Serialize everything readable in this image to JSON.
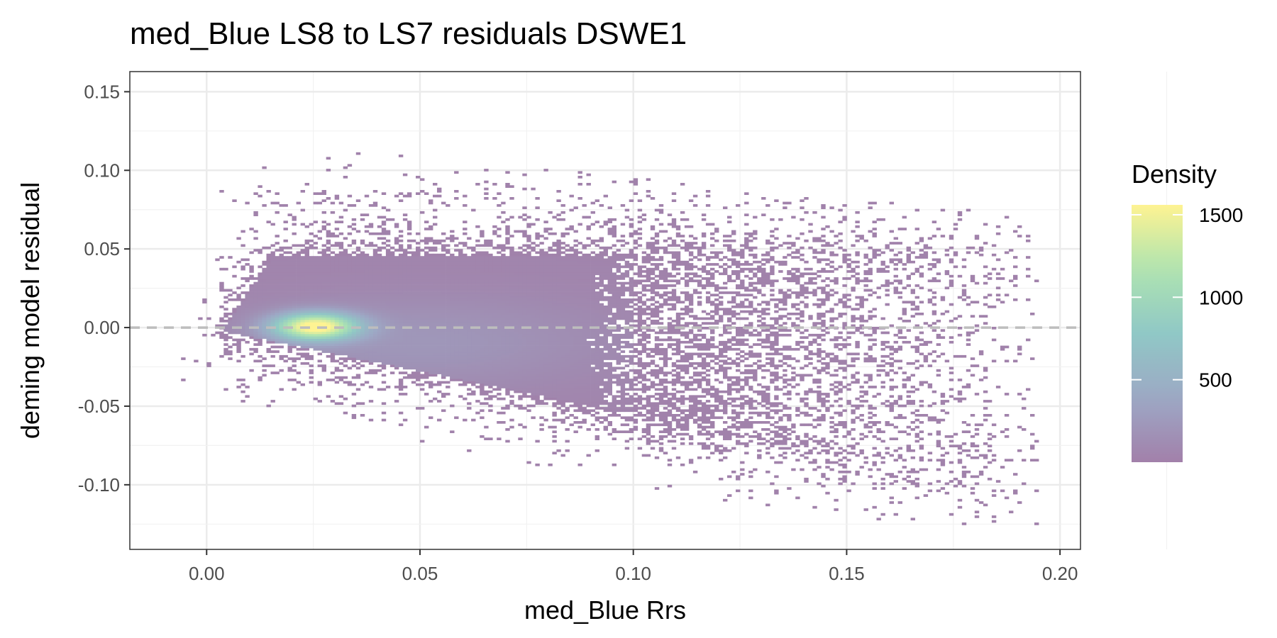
{
  "chart_data": {
    "type": "heatmap",
    "title": "med_Blue LS8 to LS7 residuals DSWE1",
    "xlabel": "med_Blue Rrs",
    "ylabel": "deming model residual",
    "xlim": [
      -0.018,
      0.2048
    ],
    "ylim": [
      -0.1411,
      0.1628
    ],
    "x_ticks": [
      0.0,
      0.05,
      0.1,
      0.15,
      0.2
    ],
    "x_tick_labels": [
      "0.00",
      "0.05",
      "0.10",
      "0.15",
      "0.20"
    ],
    "y_ticks": [
      0.15,
      0.1,
      0.05,
      0.0,
      -0.05,
      -0.1
    ],
    "y_tick_labels": [
      "0.15",
      "0.10",
      "0.05",
      "0.00",
      "-0.05",
      "-0.10"
    ],
    "grid": true,
    "reference_line": {
      "y": 0,
      "style": "dashed",
      "color": "#bdbdbd"
    },
    "legend": {
      "title": "Density",
      "placement": "right",
      "range": [
        0,
        1560
      ],
      "ticks": [
        500,
        1000,
        1500
      ],
      "tick_labels": [
        "500",
        "1000",
        "1500"
      ],
      "colormap": "viridis",
      "alpha": 0.5
    },
    "density_model": {
      "peak": {
        "x": 0.025,
        "y": 0.0,
        "density": 1560
      },
      "core_x_range": [
        0.005,
        0.1
      ],
      "core_y_upper": 0.045,
      "sparse_x_range": [
        -0.007,
        0.195
      ],
      "sparse_y_range": [
        -0.127,
        0.149
      ]
    }
  }
}
